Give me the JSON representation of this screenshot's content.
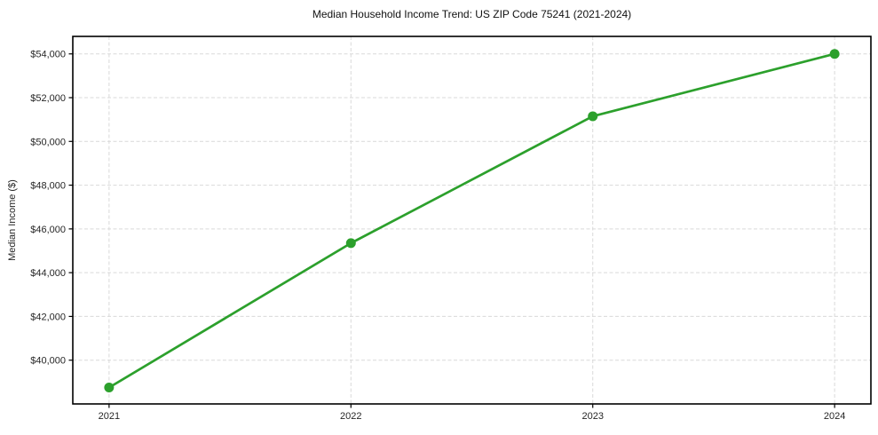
{
  "chart_data": {
    "type": "line",
    "title": "Median Household Income Trend: US ZIP Code 75241 (2021-2024)",
    "xlabel": "",
    "ylabel": "Median Income ($)",
    "categories": [
      "2021",
      "2022",
      "2023",
      "2024"
    ],
    "x": [
      2021,
      2022,
      2023,
      2024
    ],
    "series": [
      {
        "name": "Median Household Income",
        "values": [
          38750,
          45350,
          51150,
          54000
        ]
      }
    ],
    "y_ticks": [
      40000,
      42000,
      44000,
      46000,
      48000,
      50000,
      52000,
      54000
    ],
    "y_tick_labels": [
      "$40,000",
      "$42,000",
      "$44,000",
      "$46,000",
      "$48,000",
      "$50,000",
      "$52,000",
      "$54,000"
    ],
    "xlim": [
      2020.85,
      2024.15
    ],
    "ylim": [
      38000,
      54800
    ],
    "grid": true,
    "grid_style": "dashed",
    "legend": "none",
    "colors": {
      "line": "#2ca02c",
      "marker": "#2ca02c",
      "grid": "#d9d9d9",
      "axis": "#000000",
      "tick_text": "#262626",
      "background": "#ffffff"
    }
  }
}
